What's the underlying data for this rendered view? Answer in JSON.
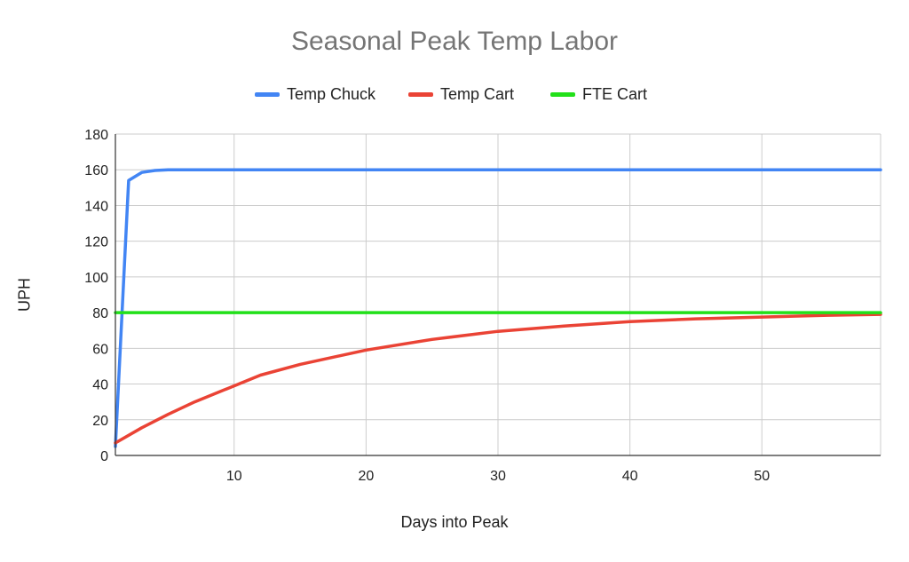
{
  "chart_data": {
    "type": "line",
    "title": "Seasonal Peak Temp Labor",
    "xlabel": "Days into Peak",
    "ylabel": "UPH",
    "xlim": [
      1,
      59
    ],
    "ylim": [
      0,
      180
    ],
    "x_ticks": [
      10,
      20,
      30,
      40,
      50
    ],
    "y_ticks": [
      0,
      20,
      40,
      60,
      80,
      100,
      120,
      140,
      160,
      180
    ],
    "grid": true,
    "legend_position": "top",
    "series": [
      {
        "name": "Temp Chuck",
        "color": "#4285f4",
        "points": [
          [
            1,
            5
          ],
          [
            2,
            154
          ],
          [
            3,
            158.5
          ],
          [
            4,
            159.6
          ],
          [
            5,
            160
          ],
          [
            59,
            160
          ]
        ]
      },
      {
        "name": "Temp Cart",
        "color": "#ea4335",
        "points": [
          [
            1,
            7
          ],
          [
            3,
            15.5
          ],
          [
            5,
            23
          ],
          [
            7,
            30
          ],
          [
            10,
            39
          ],
          [
            12,
            45
          ],
          [
            15,
            51
          ],
          [
            20,
            59
          ],
          [
            25,
            65
          ],
          [
            30,
            69.5
          ],
          [
            35,
            72.5
          ],
          [
            40,
            75
          ],
          [
            45,
            76.5
          ],
          [
            50,
            77.5
          ],
          [
            55,
            78.5
          ],
          [
            59,
            79
          ]
        ]
      },
      {
        "name": "FTE Cart",
        "color": "#22e019",
        "points": [
          [
            1,
            80
          ],
          [
            59,
            80
          ]
        ]
      }
    ]
  }
}
